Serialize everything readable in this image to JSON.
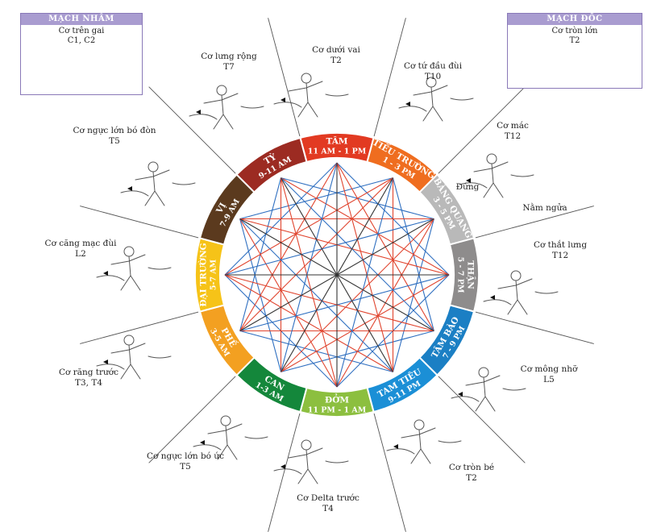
{
  "inset_left": {
    "title": "MẠCH NHÂM",
    "muscle": "Cơ trên gai",
    "level": "C1, C2"
  },
  "inset_right": {
    "title": "MẠCH ĐỐC",
    "muscle": "Cơ tròn lớn",
    "level": "T2"
  },
  "segments": [
    {
      "name": "TÂM",
      "time": "11 AM - 1 PM",
      "color": "#e23a22"
    },
    {
      "name": "TIỂU TRƯỜNG",
      "time": "1 - 3 PM",
      "color": "#ef6d1f"
    },
    {
      "name": "BÀNG QUANG",
      "time": "3 - 5 PM",
      "color": "#b9b9b9"
    },
    {
      "name": "THẬN",
      "time": "5 - 7 PM",
      "color": "#8e8c8c"
    },
    {
      "name": "TÂM BÀO",
      "time": "7 - 9 PM",
      "color": "#1b7fc4"
    },
    {
      "name": "TAM TIÊU",
      "time": "9-11 PM",
      "color": "#1b8fd6"
    },
    {
      "name": "ĐỞM",
      "time": "11 PM - 1 AM",
      "color": "#8cbf3f"
    },
    {
      "name": "CAN",
      "time": "1-3 AM",
      "color": "#14873b"
    },
    {
      "name": "PHẾ",
      "time": "3-5 AM",
      "color": "#f3a021"
    },
    {
      "name": "ĐẠI TRƯỜNG",
      "time": "5-7 AM",
      "color": "#f6c318"
    },
    {
      "name": "VỊ",
      "time": "7-9 AM",
      "color": "#5b3a1e"
    },
    {
      "name": "TỲ",
      "time": "9-11 AM",
      "color": "#9c2b22"
    }
  ],
  "muscles": [
    {
      "name": "Cơ dưới vai",
      "level": "T2"
    },
    {
      "name": "Cơ tứ đầu đùi",
      "level": "T10"
    },
    {
      "name": "Cơ mác",
      "level": "T12"
    },
    {
      "name": "Cơ thắt lưng",
      "level": "T12"
    },
    {
      "name": "Cơ mông nhỡ",
      "level": "L5"
    },
    {
      "name": "Cơ tròn bé",
      "level": "T2"
    },
    {
      "name": "Cơ Delta trước",
      "level": "T4"
    },
    {
      "name": "Cơ ngực lớn bó ức",
      "level": "T5"
    },
    {
      "name": "Cơ răng trước",
      "level": "T3, T4"
    },
    {
      "name": "Cơ căng mạc đùi",
      "level": "L2"
    },
    {
      "name": "Cơ ngực lớn bó đòn",
      "level": "T5"
    },
    {
      "name": "Cơ lưng rộng",
      "level": "T7"
    }
  ],
  "captions": {
    "standing": "Đứng",
    "supine": "Nằm ngửa"
  },
  "colors": {
    "red_line": "#e0442e",
    "blue_line": "#2f6fc0",
    "dark_line": "#333333",
    "inset_border": "#8a79b8"
  }
}
